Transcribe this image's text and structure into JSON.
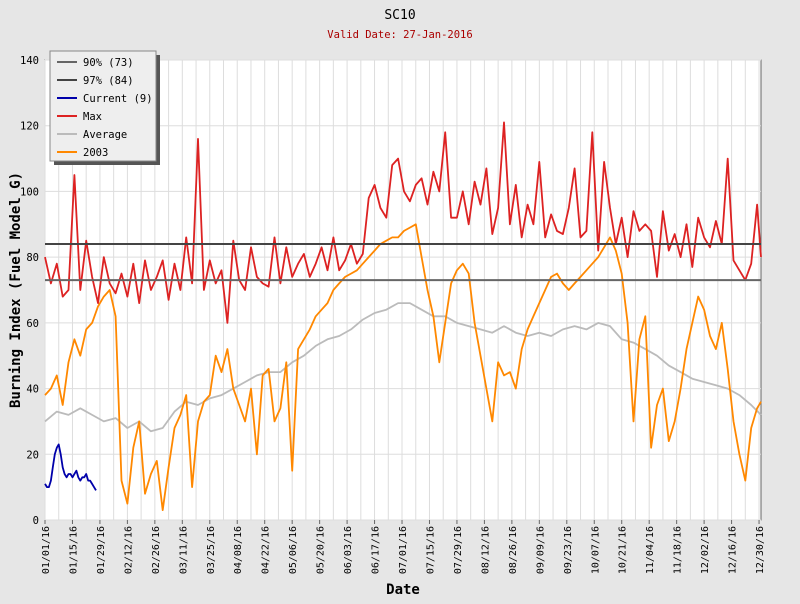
{
  "chart_data": {
    "type": "line",
    "title": "SC10",
    "subtitle": "Valid Date: 27-Jan-2016",
    "xlabel": "Date",
    "ylabel": "Burning Index (Fuel Model G)",
    "ylim": [
      0,
      140
    ],
    "yticks": [
      0,
      20,
      40,
      60,
      80,
      100,
      120,
      140
    ],
    "xlim": [
      1,
      366
    ],
    "xticks": [
      {
        "day": 1,
        "label": "01/01/16"
      },
      {
        "day": 15,
        "label": "01/15/16"
      },
      {
        "day": 29,
        "label": "01/29/16"
      },
      {
        "day": 43,
        "label": "02/12/16"
      },
      {
        "day": 57,
        "label": "02/26/16"
      },
      {
        "day": 71,
        "label": "03/11/16"
      },
      {
        "day": 85,
        "label": "03/25/16"
      },
      {
        "day": 99,
        "label": "04/08/16"
      },
      {
        "day": 113,
        "label": "04/22/16"
      },
      {
        "day": 127,
        "label": "05/06/16"
      },
      {
        "day": 141,
        "label": "05/20/16"
      },
      {
        "day": 155,
        "label": "06/03/16"
      },
      {
        "day": 169,
        "label": "06/17/16"
      },
      {
        "day": 183,
        "label": "07/01/16"
      },
      {
        "day": 197,
        "label": "07/15/16"
      },
      {
        "day": 211,
        "label": "07/29/16"
      },
      {
        "day": 225,
        "label": "08/12/16"
      },
      {
        "day": 239,
        "label": "08/26/16"
      },
      {
        "day": 253,
        "label": "09/09/16"
      },
      {
        "day": 267,
        "label": "09/23/16"
      },
      {
        "day": 281,
        "label": "10/07/16"
      },
      {
        "day": 295,
        "label": "10/21/16"
      },
      {
        "day": 309,
        "label": "11/04/16"
      },
      {
        "day": 323,
        "label": "11/18/16"
      },
      {
        "day": 337,
        "label": "12/02/16"
      },
      {
        "day": 351,
        "label": "12/16/16"
      },
      {
        "day": 365,
        "label": "12/30/16"
      }
    ],
    "grid": true,
    "legend_position": "top-left",
    "series": [
      {
        "name": "90% (73)",
        "color": "#666666",
        "kind": "hline",
        "value": 73
      },
      {
        "name": "97% (84)",
        "color": "#444444",
        "kind": "hline",
        "value": 84
      },
      {
        "name": "Current (9)",
        "color": "#0000aa",
        "x": [
          1,
          2,
          3,
          4,
          5,
          6,
          7,
          8,
          9,
          10,
          11,
          12,
          13,
          14,
          15,
          16,
          17,
          18,
          19,
          20,
          21,
          22,
          23,
          24,
          25,
          26,
          27
        ],
        "y": [
          11,
          10,
          10,
          12,
          16,
          20,
          22,
          23,
          20,
          16,
          14,
          13,
          14,
          14,
          13,
          14,
          15,
          13,
          12,
          13,
          13,
          14,
          12,
          12,
          11,
          10,
          9
        ]
      },
      {
        "name": "Max",
        "color": "#dd2222",
        "x": [
          1,
          4,
          7,
          10,
          13,
          16,
          19,
          22,
          25,
          28,
          31,
          34,
          37,
          40,
          43,
          46,
          49,
          52,
          55,
          58,
          61,
          64,
          67,
          70,
          73,
          76,
          79,
          82,
          85,
          88,
          91,
          94,
          97,
          100,
          103,
          106,
          109,
          112,
          115,
          118,
          121,
          124,
          127,
          130,
          133,
          136,
          139,
          142,
          145,
          148,
          151,
          154,
          157,
          160,
          163,
          166,
          169,
          172,
          175,
          178,
          181,
          184,
          187,
          190,
          193,
          196,
          199,
          202,
          205,
          208,
          211,
          214,
          217,
          220,
          223,
          226,
          229,
          232,
          235,
          238,
          241,
          244,
          247,
          250,
          253,
          256,
          259,
          262,
          265,
          268,
          271,
          274,
          277,
          280,
          283,
          286,
          289,
          292,
          295,
          298,
          301,
          304,
          307,
          310,
          313,
          316,
          319,
          322,
          325,
          328,
          331,
          334,
          337,
          340,
          343,
          346,
          349,
          352,
          355,
          358,
          361,
          364,
          366
        ],
        "y": [
          80,
          72,
          78,
          68,
          70,
          105,
          70,
          85,
          74,
          66,
          80,
          72,
          69,
          75,
          68,
          78,
          66,
          79,
          70,
          74,
          79,
          67,
          78,
          70,
          86,
          72,
          116,
          70,
          79,
          72,
          76,
          60,
          85,
          73,
          70,
          83,
          74,
          72,
          71,
          86,
          72,
          83,
          74,
          78,
          81,
          74,
          78,
          83,
          76,
          86,
          76,
          79,
          84,
          78,
          81,
          98,
          102,
          95,
          92,
          108,
          110,
          100,
          97,
          102,
          104,
          96,
          106,
          100,
          118,
          92,
          92,
          100,
          90,
          103,
          96,
          107,
          87,
          95,
          121,
          90,
          102,
          86,
          96,
          90,
          109,
          86,
          93,
          88,
          87,
          95,
          107,
          86,
          88,
          118,
          82,
          109,
          95,
          84,
          92,
          80,
          94,
          88,
          90,
          88,
          74,
          94,
          82,
          87,
          80,
          90,
          77,
          92,
          86,
          83,
          91,
          84,
          110,
          79,
          76,
          73,
          78,
          96,
          80
        ]
      },
      {
        "name": "Average",
        "color": "#bbbbbb",
        "x": [
          1,
          7,
          13,
          19,
          25,
          31,
          37,
          43,
          49,
          55,
          61,
          67,
          73,
          79,
          85,
          91,
          97,
          103,
          109,
          115,
          121,
          127,
          133,
          139,
          145,
          151,
          157,
          163,
          169,
          175,
          181,
          187,
          193,
          199,
          205,
          211,
          217,
          223,
          229,
          235,
          241,
          247,
          253,
          259,
          265,
          271,
          277,
          283,
          289,
          295,
          301,
          307,
          313,
          319,
          325,
          331,
          337,
          343,
          349,
          355,
          361,
          366
        ],
        "y": [
          30,
          33,
          32,
          34,
          32,
          30,
          31,
          28,
          30,
          27,
          28,
          33,
          36,
          35,
          37,
          38,
          40,
          42,
          44,
          45,
          45,
          48,
          50,
          53,
          55,
          56,
          58,
          61,
          63,
          64,
          66,
          66,
          64,
          62,
          62,
          60,
          59,
          58,
          57,
          59,
          57,
          56,
          57,
          56,
          58,
          59,
          58,
          60,
          59,
          55,
          54,
          52,
          50,
          47,
          45,
          43,
          42,
          41,
          40,
          38,
          35,
          32
        ]
      },
      {
        "name": "2003",
        "color": "#ff8800",
        "x": [
          1,
          4,
          7,
          10,
          13,
          16,
          19,
          22,
          25,
          28,
          31,
          34,
          37,
          40,
          43,
          46,
          49,
          52,
          55,
          58,
          61,
          64,
          67,
          70,
          73,
          76,
          79,
          82,
          85,
          88,
          91,
          94,
          97,
          100,
          103,
          106,
          109,
          112,
          115,
          118,
          121,
          124,
          127,
          130,
          133,
          136,
          139,
          142,
          145,
          148,
          151,
          154,
          157,
          160,
          163,
          166,
          169,
          172,
          175,
          178,
          181,
          184,
          187,
          190,
          193,
          196,
          199,
          202,
          205,
          208,
          211,
          214,
          217,
          220,
          223,
          226,
          229,
          232,
          235,
          238,
          241,
          244,
          247,
          250,
          253,
          256,
          259,
          262,
          265,
          268,
          271,
          274,
          277,
          280,
          283,
          286,
          289,
          292,
          295,
          298,
          301,
          304,
          307,
          310,
          313,
          316,
          319,
          322,
          325,
          328,
          331,
          334,
          337,
          340,
          343,
          346,
          349,
          352,
          355,
          358,
          361,
          364,
          366
        ],
        "y": [
          38,
          40,
          44,
          35,
          48,
          55,
          50,
          58,
          60,
          65,
          68,
          70,
          62,
          12,
          5,
          22,
          30,
          8,
          14,
          18,
          3,
          16,
          28,
          32,
          38,
          10,
          30,
          36,
          38,
          50,
          45,
          52,
          40,
          35,
          30,
          40,
          20,
          44,
          46,
          30,
          34,
          48,
          15,
          52,
          55,
          58,
          62,
          64,
          66,
          70,
          72,
          74,
          75,
          76,
          78,
          80,
          82,
          84,
          85,
          86,
          86,
          88,
          89,
          90,
          80,
          70,
          62,
          48,
          60,
          72,
          76,
          78,
          75,
          60,
          50,
          40,
          30,
          48,
          44,
          45,
          40,
          52,
          58,
          62,
          66,
          70,
          74,
          75,
          72,
          70,
          72,
          74,
          76,
          78,
          80,
          83,
          86,
          82,
          75,
          60,
          30,
          55,
          62,
          22,
          35,
          40,
          24,
          30,
          40,
          52,
          60,
          68,
          64,
          56,
          52,
          60,
          46,
          30,
          20,
          12,
          28,
          34,
          36
        ]
      }
    ]
  }
}
